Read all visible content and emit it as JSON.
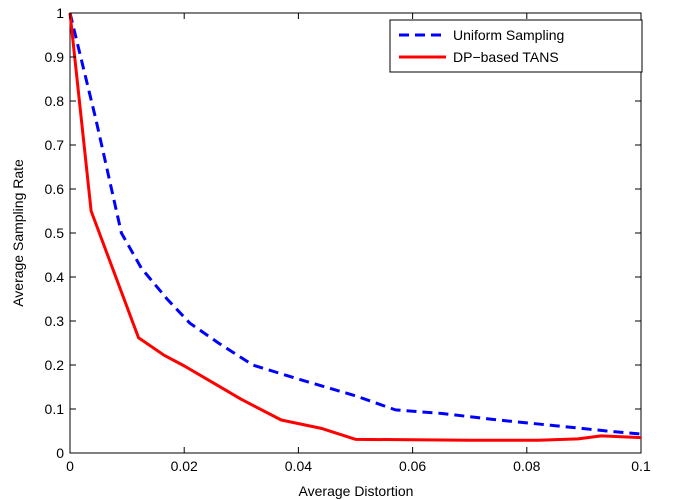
{
  "chart_data": {
    "type": "line",
    "title": "",
    "xlabel": "Average Distortion",
    "ylabel": "Average Sampling Rate",
    "xlim": [
      0,
      0.1
    ],
    "ylim": [
      0,
      1
    ],
    "x_ticks": [
      0,
      0.02,
      0.04,
      0.06,
      0.08,
      0.1
    ],
    "x_tick_labels": [
      "0",
      "0.02",
      "0.04",
      "0.06",
      "0.08",
      "0.1"
    ],
    "y_ticks": [
      0,
      0.1,
      0.2,
      0.3,
      0.4,
      0.5,
      0.6,
      0.7,
      0.8,
      0.9,
      1
    ],
    "y_tick_labels": [
      "0",
      "0.1",
      "0.2",
      "0.3",
      "0.4",
      "0.5",
      "0.6",
      "0.7",
      "0.8",
      "0.9",
      "1"
    ],
    "grid": false,
    "legend_position": "top-right",
    "series": [
      {
        "name": "Uniform Sampling",
        "color": "#0000ff",
        "line_style": "dashed",
        "x": [
          0,
          0.0045,
          0.009,
          0.0125,
          0.017,
          0.021,
          0.026,
          0.032,
          0.04,
          0.05,
          0.057,
          0.065,
          0.075,
          0.085,
          0.094,
          0.1
        ],
        "y": [
          1.0,
          0.76,
          0.5,
          0.42,
          0.35,
          0.295,
          0.25,
          0.2,
          0.168,
          0.13,
          0.098,
          0.09,
          0.075,
          0.062,
          0.05,
          0.043
        ]
      },
      {
        "name": "DP-based TANS",
        "color": "#ff0000",
        "line_style": "solid",
        "x": [
          0,
          0.0037,
          0.012,
          0.0165,
          0.02,
          0.025,
          0.03,
          0.037,
          0.044,
          0.05,
          0.06,
          0.07,
          0.082,
          0.089,
          0.093,
          0.1
        ],
        "y": [
          1.0,
          0.55,
          0.262,
          0.222,
          0.198,
          0.16,
          0.122,
          0.075,
          0.056,
          0.031,
          0.03,
          0.029,
          0.029,
          0.032,
          0.039,
          0.035
        ]
      }
    ]
  },
  "legend": {
    "items": [
      "Uniform Sampling",
      "DP−based TANS"
    ]
  }
}
